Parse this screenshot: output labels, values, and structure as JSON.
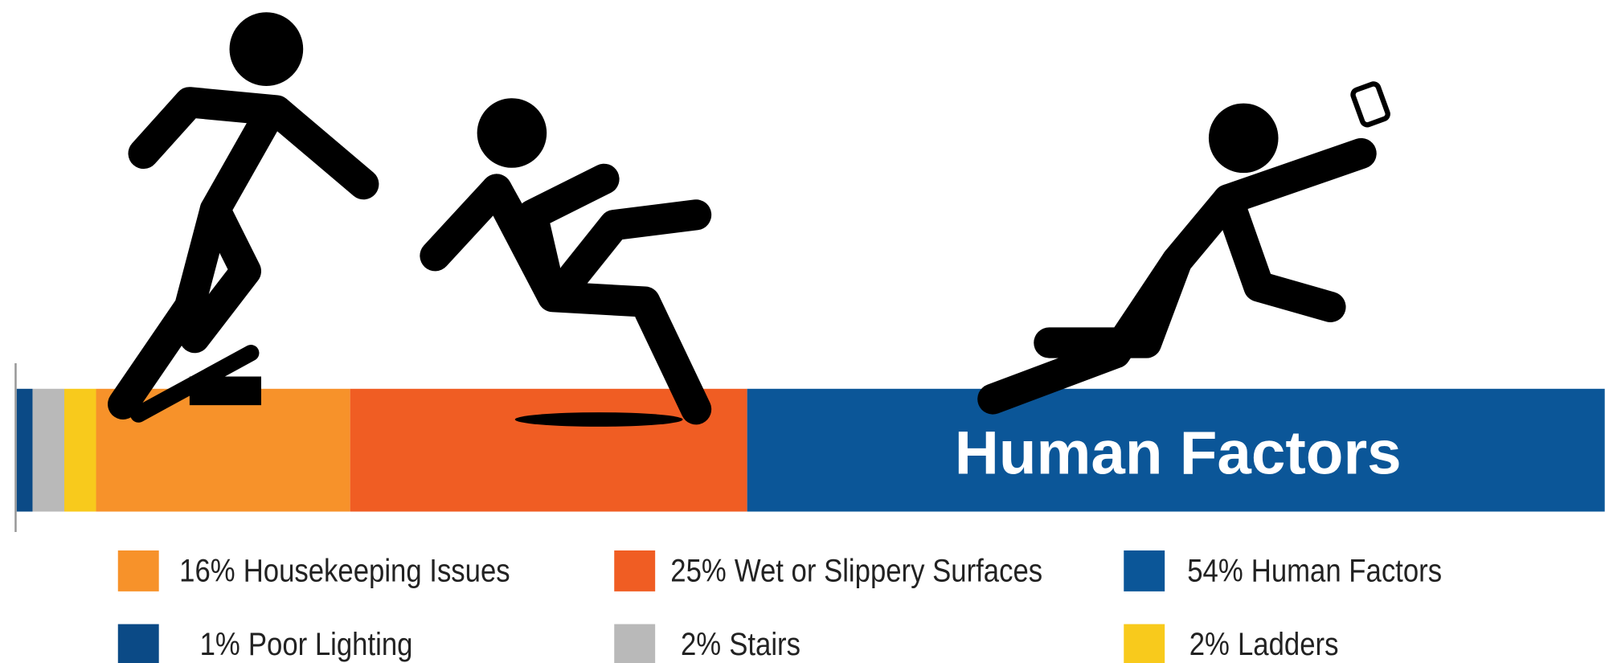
{
  "chart_data": {
    "type": "stacked-bar",
    "orientation": "horizontal",
    "xlim": [
      0,
      100
    ],
    "series": [
      {
        "name": "Poor Lighting",
        "color": "#0b4a86",
        "values": [
          1
        ],
        "value_labels": [
          "1%"
        ]
      },
      {
        "name": "Stairs",
        "color": "#b9b9b9",
        "values": [
          2
        ],
        "value_labels": [
          "2%"
        ]
      },
      {
        "name": "Ladders",
        "color": "#f8ca1c",
        "values": [
          2
        ],
        "value_labels": [
          "2%"
        ]
      },
      {
        "name": "Housekeeping Issues",
        "color": "#f7922a",
        "values": [
          16
        ],
        "value_labels": [
          "16%"
        ]
      },
      {
        "name": "Wet or Slippery Surfaces",
        "color": "#f05d23",
        "values": [
          25
        ],
        "value_labels": [
          "25%"
        ]
      },
      {
        "name": "Human Factors",
        "color": "#0b5698",
        "values": [
          54
        ],
        "value_labels": [
          "54%"
        ]
      }
    ],
    "bar_label_series": 5
  }
}
